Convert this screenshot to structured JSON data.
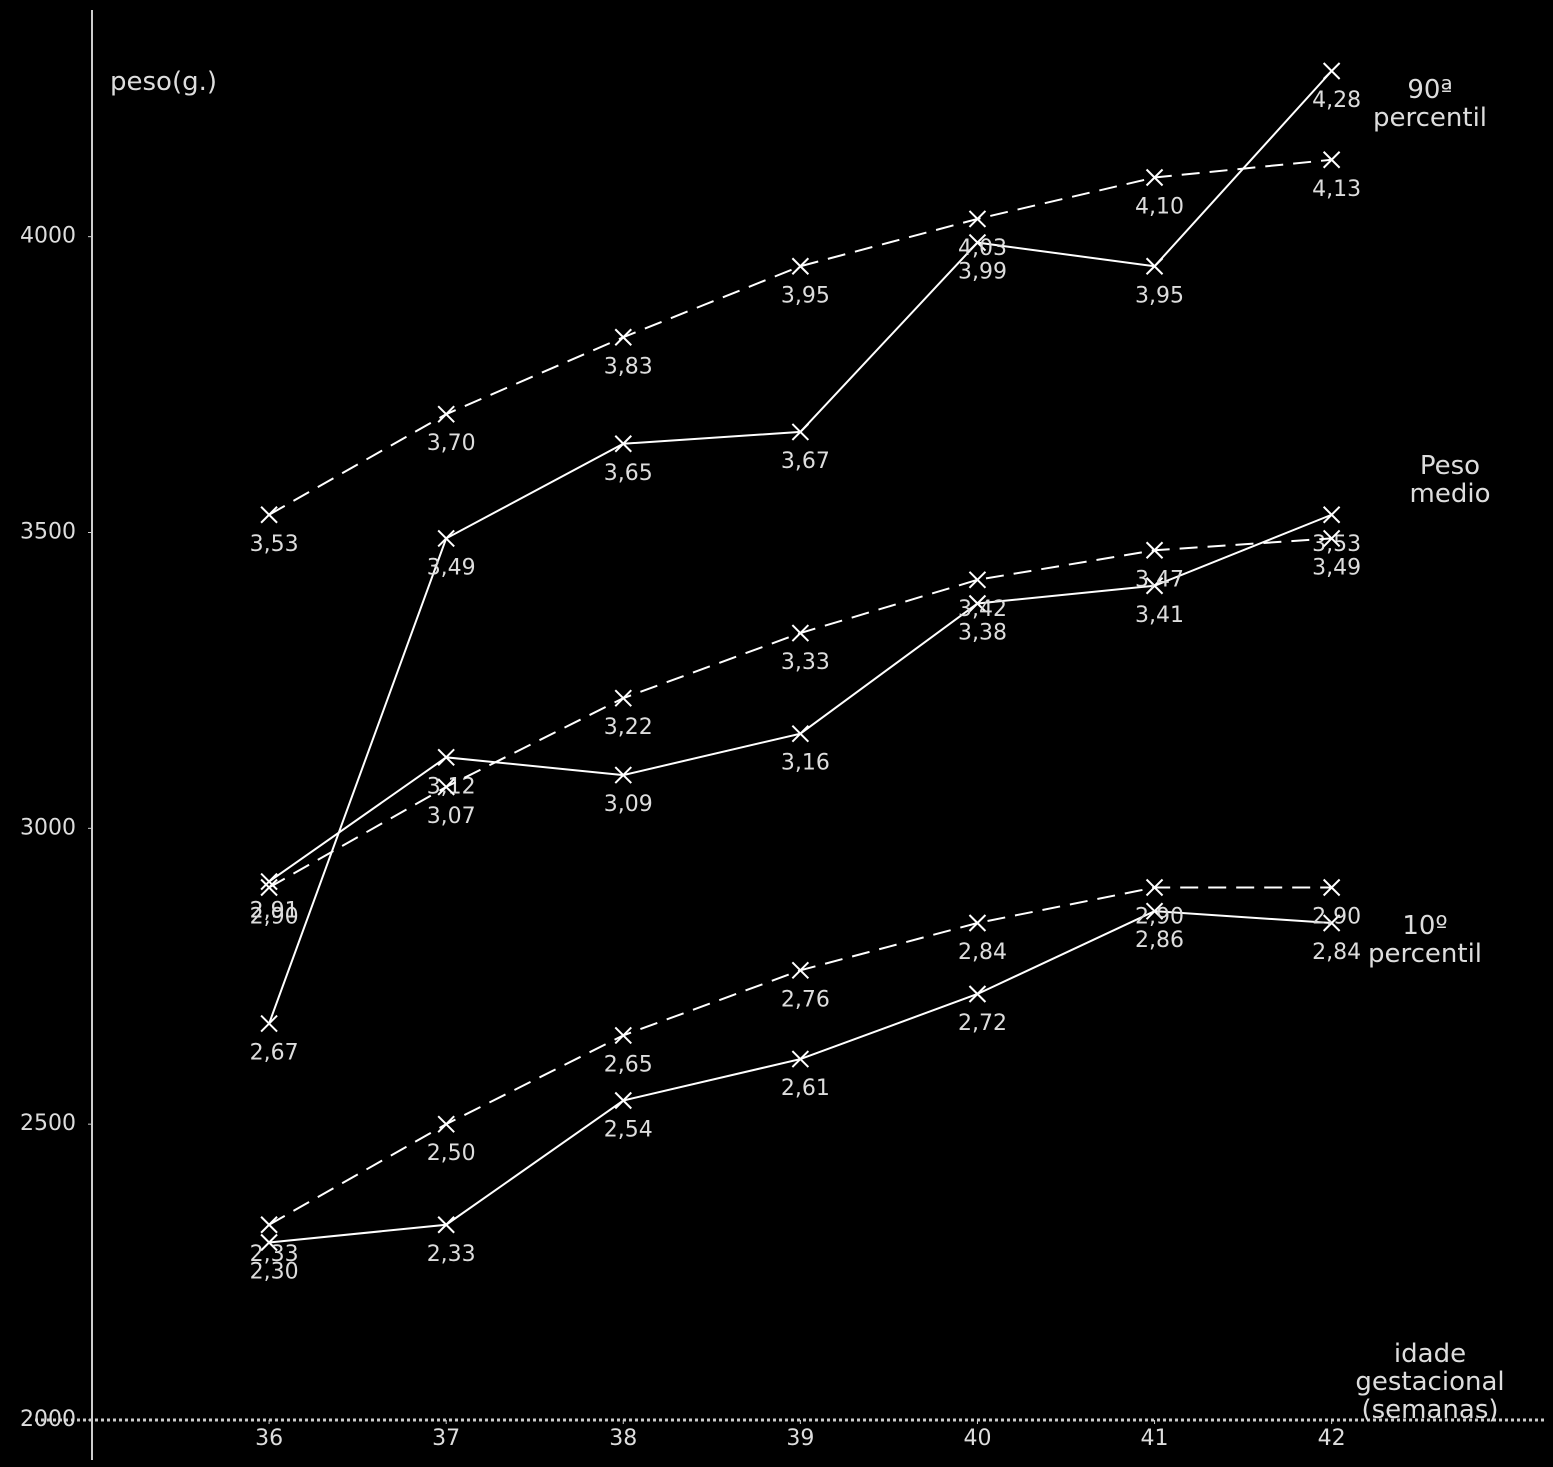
{
  "chart_data": {
    "type": "line",
    "y_label": "peso(g.)",
    "x_label": "idade gestacional (semanas)",
    "group_labels": [
      "90ª percentil",
      "Peso medio",
      "10º percentil"
    ],
    "x": [
      36,
      37,
      38,
      39,
      40,
      41,
      42
    ],
    "xlim": [
      35,
      43.25
    ],
    "xticks": [
      36,
      37,
      38,
      39,
      40,
      41,
      42
    ],
    "ylim": [
      2000,
      4400
    ],
    "yticks": [
      2000,
      2500,
      3000,
      3500,
      4000
    ],
    "series": [
      {
        "color": "#ffffff",
        "dash": false,
        "values": [
          2670,
          3490,
          3650,
          3670,
          3990,
          3950,
          4280
        ],
        "value_labels": [
          "2,67",
          "3,49",
          "3,65",
          "3,67",
          "3,99",
          "3,95",
          "4,28"
        ]
      },
      {
        "color": "#ffffff",
        "dash": true,
        "values": [
          3530,
          3700,
          3830,
          3950,
          4030,
          4100,
          4130
        ],
        "value_labels": [
          "3,53",
          "3,70",
          "3,83",
          "3,95",
          "4,03",
          "4,10",
          "4,13"
        ]
      },
      {
        "color": "#ffffff",
        "dash": false,
        "values": [
          2910,
          3120,
          3090,
          3160,
          3380,
          3410,
          3530
        ],
        "value_labels": [
          "2,91",
          "3,12",
          "3,09",
          "3,16",
          "3,38",
          "3,41",
          "3,53"
        ]
      },
      {
        "color": "#ffffff",
        "dash": true,
        "values": [
          2900,
          3070,
          3220,
          3330,
          3420,
          3470,
          3490
        ],
        "value_labels": [
          "2,90",
          "3,07",
          "3,22",
          "3,33",
          "3,42",
          "3,47",
          "3,49"
        ]
      },
      {
        "color": "#ffffff",
        "dash": false,
        "values": [
          2300,
          2330,
          2540,
          2610,
          2720,
          2860,
          2840
        ],
        "value_labels": [
          "2,30",
          "2,33",
          "2,54",
          "2,61",
          "2,72",
          "2,86",
          "2,84"
        ]
      },
      {
        "color": "#ffffff",
        "dash": true,
        "values": [
          2330,
          2500,
          2650,
          2760,
          2840,
          2900,
          2900
        ],
        "value_labels": [
          "2,33",
          "2,50",
          "2,65",
          "2,76",
          "2,84",
          "2,90",
          "2,90"
        ]
      }
    ]
  }
}
